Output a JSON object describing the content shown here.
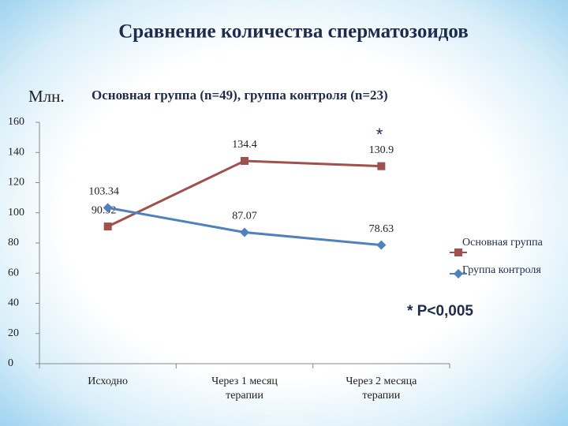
{
  "chart_data": {
    "type": "line",
    "title": "Сравнение количества сперматозоидов",
    "y_unit": "Млн.",
    "subtitle": "Основная группа (n=49), группа контроля (n=23)",
    "categories": [
      "Исходно",
      "Через 1 месяц терапии",
      "Через 2 месяца терапии"
    ],
    "series": [
      {
        "name": "Основная группа",
        "color": "#a0504d",
        "marker": "square",
        "values": [
          90.92,
          134.4,
          130.9
        ]
      },
      {
        "name": "Группа контроля",
        "color": "#4f81bd",
        "marker": "diamond",
        "values": [
          103.34,
          87.07,
          78.63
        ]
      }
    ],
    "ylim": [
      0,
      160
    ],
    "yticks": [
      0,
      20,
      40,
      60,
      80,
      100,
      120,
      140,
      160
    ],
    "grid": false,
    "legend": "right",
    "annotations": [
      "*",
      "* P<0,005"
    ]
  }
}
